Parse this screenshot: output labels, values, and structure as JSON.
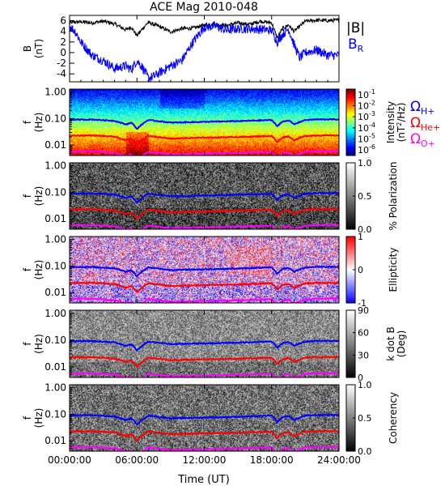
{
  "chart_data": {
    "type": "line",
    "title": "ACE Mag 2010-048",
    "xlabel": "Time (UT)",
    "x_ticks": [
      "00:00:00",
      "06:00:00",
      "12:00:00",
      "18:00:00",
      "24:00:00"
    ],
    "xlim_hours": [
      0,
      24
    ],
    "panels": [
      {
        "kind": "line",
        "ylabel": "B",
        "yunit": "(nT)",
        "ylim": [
          -5.5,
          7
        ],
        "yticks": [
          "6",
          "4",
          "2",
          "0",
          "-2",
          "-4"
        ],
        "series": [
          {
            "name": "|B|",
            "color": "#000000",
            "x": [
              0,
              1,
              2,
              3,
              4,
              5,
              5.5,
              6,
              6.5,
              7,
              8,
              9,
              10,
              11,
              12,
              13,
              14,
              15,
              16,
              17,
              18,
              18.5,
              19,
              19.5,
              20,
              21,
              22,
              23,
              24
            ],
            "values": [
              5.6,
              5.8,
              5.6,
              5.9,
              5.4,
              4.3,
              4.8,
              3.2,
              4.5,
              5.7,
              4.9,
              3.9,
              4.5,
              4.6,
              5.2,
              5.3,
              5.1,
              5.6,
              5.3,
              5.9,
              5.6,
              2.8,
              4.6,
              5.2,
              4.0,
              5.9,
              6.1,
              6.0,
              6.1
            ]
          },
          {
            "name": "B",
            "subscript": "R",
            "color": "#0000ff",
            "x": [
              0,
              0.5,
              1,
              2,
              3,
              4,
              5,
              5.5,
              6,
              6.5,
              7,
              7.5,
              8,
              9,
              10,
              11,
              12,
              13,
              14,
              15,
              16,
              17,
              18,
              18.5,
              19,
              19.5,
              20,
              20.5,
              21,
              22,
              23,
              24
            ],
            "values": [
              5,
              4,
              2,
              -0.5,
              -1.5,
              -3,
              -2.5,
              -3.2,
              -1.5,
              -2.8,
              -4.8,
              -4.5,
              -3.8,
              -2.5,
              -1.5,
              2,
              4.8,
              5,
              4.2,
              4.5,
              4.5,
              4.4,
              4.2,
              2,
              3.5,
              4.5,
              1.5,
              -1,
              0,
              0.5,
              -0.5,
              -0.5
            ]
          }
        ],
        "legend": [
          "|B|",
          "B_R"
        ]
      },
      {
        "kind": "spectrogram",
        "ylabel": "f",
        "yunit": "(Hz)",
        "yticks": [
          "1.00",
          "0.10",
          "0.01"
        ],
        "colorbar_label": "Intensity (nT²/Hz)",
        "colorbar_label_parts": [
          "Intensity",
          "(nT",
          "2",
          "/Hz)"
        ],
        "colorbar_ticks": [
          {
            "base": "10",
            "exp": "-1"
          },
          {
            "base": "10",
            "exp": "-2"
          },
          {
            "base": "10",
            "exp": "-3"
          },
          {
            "base": "10",
            "exp": "-4"
          },
          {
            "base": "10",
            "exp": "-5"
          },
          {
            "base": "10",
            "exp": "-6"
          }
        ],
        "colorbar_range": [
          -6.5,
          -0.5
        ],
        "legend": [
          {
            "symbol": "Ω",
            "sub": "H+",
            "color": "#0000ff"
          },
          {
            "symbol": "Ω",
            "sub": "He+",
            "color": "#ff0000"
          },
          {
            "symbol": "Ω",
            "sub": "O+",
            "color": "#ff00ff"
          }
        ]
      },
      {
        "kind": "spectrogram",
        "ylabel": "f",
        "yunit": "(Hz)",
        "yticks": [
          "1.00",
          "0.10",
          "0.01"
        ],
        "colorbar_label": "% Polarization",
        "colorbar_ticks": [
          "1.0",
          "0.5",
          "0.0"
        ],
        "colorbar_range": [
          0,
          1
        ],
        "colormap": "gray"
      },
      {
        "kind": "spectrogram",
        "ylabel": "f",
        "yunit": "(Hz)",
        "yticks": [
          "1.00",
          "0.10",
          "0.01"
        ],
        "colorbar_label": "Ellipticity",
        "colorbar_ticks": [
          "1",
          "0",
          "-1"
        ],
        "colorbar_range": [
          -1,
          1
        ],
        "colormap": "bwr"
      },
      {
        "kind": "spectrogram",
        "ylabel": "f",
        "yunit": "(Hz)",
        "yticks": [
          "1.00",
          "0.10",
          "0.01"
        ],
        "colorbar_label": "k dot B",
        "colorbar_label2": "(Deg)",
        "colorbar_ticks": [
          "90",
          "60",
          "30",
          "0"
        ],
        "colorbar_range": [
          0,
          90
        ],
        "colormap": "gray"
      },
      {
        "kind": "spectrogram",
        "ylabel": "f",
        "yunit": "(Hz)",
        "yticks": [
          "1.00",
          "0.10",
          "0.01"
        ],
        "colorbar_label": "Coherency",
        "colorbar_ticks": [
          "1.0",
          "0.5",
          "0.0"
        ],
        "colorbar_range": [
          0,
          1
        ],
        "colormap": "gray"
      }
    ],
    "gyrofrequency_lines": {
      "x": [
        0,
        2,
        4,
        5,
        5.5,
        6,
        6.5,
        7,
        9,
        12,
        15,
        18,
        18.5,
        19,
        19.5,
        20,
        21,
        22,
        24
      ],
      "H+": [
        0.09,
        0.092,
        0.082,
        0.06,
        0.07,
        0.04,
        0.062,
        0.088,
        0.07,
        0.075,
        0.08,
        0.088,
        0.05,
        0.078,
        0.085,
        0.06,
        0.088,
        0.093,
        0.093
      ],
      "He+": [
        0.0225,
        0.023,
        0.0205,
        0.015,
        0.0175,
        0.01,
        0.0155,
        0.022,
        0.0175,
        0.019,
        0.02,
        0.022,
        0.0125,
        0.0195,
        0.021,
        0.015,
        0.022,
        0.023,
        0.023
      ],
      "O+": [
        0.0056,
        0.0058,
        0.0051,
        0.0038,
        0.0044,
        0.0025,
        0.0039,
        0.0055,
        0.0044,
        0.0047,
        0.005,
        0.0055,
        0.0031,
        0.0049,
        0.0053,
        0.0038,
        0.0055,
        0.0058,
        0.0058
      ]
    },
    "flim_hz": [
      0.004,
      1.3
    ],
    "grid": false
  }
}
